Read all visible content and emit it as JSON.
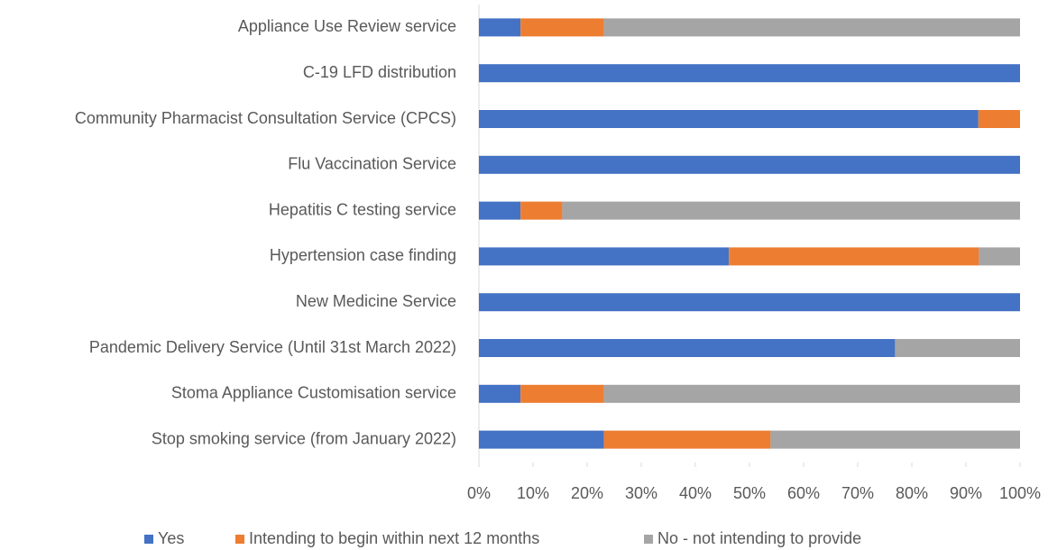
{
  "chart_data": {
    "type": "stacked_barh",
    "categories": [
      "Appliance Use Review service",
      "C-19 LFD distribution",
      "Community Pharmacist Consultation Service (CPCS)",
      "Flu Vaccination Service",
      "Hepatitis C testing service ",
      "Hypertension case finding",
      "New Medicine Service",
      "Pandemic Delivery Service (Until 31st March 2022)",
      "Stoma Appliance Customisation service",
      "Stop smoking service (from January 2022)"
    ],
    "series": [
      {
        "name": "Yes",
        "color": "#4472c4",
        "values": [
          7.7,
          100,
          92.3,
          100,
          7.7,
          46.2,
          100,
          76.9,
          7.7,
          23.1
        ]
      },
      {
        "name": "Intending to begin within next 12 months",
        "color": "#ed7d31",
        "values": [
          15.4,
          0,
          7.7,
          0,
          7.7,
          46.2,
          0,
          0,
          15.4,
          30.8
        ]
      },
      {
        "name": "No - not intending to provide",
        "color": "#a5a5a5",
        "values": [
          76.9,
          0,
          0,
          0,
          84.6,
          7.6,
          0,
          23.1,
          76.9,
          46.1
        ]
      }
    ],
    "xlim": [
      0,
      100
    ],
    "xticks": [
      {
        "value": 0,
        "label": "0%"
      },
      {
        "value": 10,
        "label": "10%"
      },
      {
        "value": 20,
        "label": "20%"
      },
      {
        "value": 30,
        "label": "30%"
      },
      {
        "value": 40,
        "label": "40%"
      },
      {
        "value": 50,
        "label": "50%"
      },
      {
        "value": 60,
        "label": "60%"
      },
      {
        "value": 70,
        "label": "70%"
      },
      {
        "value": 80,
        "label": "80%"
      },
      {
        "value": 90,
        "label": "90%"
      },
      {
        "value": 100,
        "label": "100%"
      }
    ],
    "grid": false,
    "legend": "bottom"
  }
}
